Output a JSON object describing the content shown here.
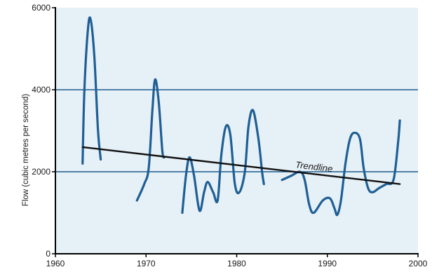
{
  "chart_data": {
    "type": "line",
    "title": "",
    "xlabel": "",
    "ylabel": "Flow (cubic metres per second)",
    "xlim": [
      1960,
      2000
    ],
    "ylim": [
      0,
      6000
    ],
    "x_ticks": [
      1960,
      1970,
      1980,
      1990,
      2000
    ],
    "y_ticks": [
      0,
      2000,
      4000,
      6000
    ],
    "grid": {
      "horizontal_lines_at": [
        2000,
        4000
      ]
    },
    "legend": "none",
    "colors": {
      "plot_background": "#e6f0f7",
      "series": "#1f5f95",
      "grid": "#1f5c8c",
      "trendline": "#111111"
    },
    "series": [
      {
        "segments": [
          [
            [
              1963.0,
              2200
            ],
            [
              1963.2,
              4000
            ],
            [
              1963.6,
              5500
            ],
            [
              1963.9,
              5700
            ],
            [
              1964.3,
              4800
            ],
            [
              1964.7,
              3000
            ],
            [
              1965.0,
              2300
            ]
          ],
          [
            [
              1969.0,
              1300
            ],
            [
              1969.8,
              1700
            ],
            [
              1970.3,
              2100
            ],
            [
              1970.7,
              3500
            ],
            [
              1971.0,
              4250
            ],
            [
              1971.4,
              3700
            ],
            [
              1971.8,
              2500
            ],
            [
              1972.0,
              2350
            ]
          ],
          [
            [
              1974.0,
              1000
            ],
            [
              1974.4,
              1900
            ],
            [
              1974.8,
              2350
            ],
            [
              1975.3,
              1900
            ],
            [
              1975.9,
              1050
            ],
            [
              1976.4,
              1500
            ],
            [
              1976.8,
              1750
            ],
            [
              1977.4,
              1500
            ],
            [
              1977.9,
              1300
            ],
            [
              1978.3,
              2400
            ],
            [
              1978.8,
              3100
            ],
            [
              1979.3,
              2900
            ],
            [
              1979.8,
              1700
            ],
            [
              1980.3,
              1500
            ],
            [
              1980.9,
              2000
            ],
            [
              1981.3,
              3100
            ],
            [
              1981.8,
              3500
            ],
            [
              1982.4,
              2800
            ],
            [
              1982.8,
              2000
            ],
            [
              1983.0,
              1700
            ]
          ],
          [
            [
              1985.0,
              1800
            ],
            [
              1986.0,
              1900
            ],
            [
              1987.0,
              2000
            ],
            [
              1987.5,
              1800
            ],
            [
              1988.0,
              1200
            ],
            [
              1988.5,
              1000
            ],
            [
              1989.5,
              1300
            ],
            [
              1990.3,
              1350
            ],
            [
              1990.8,
              1100
            ],
            [
              1991.1,
              950
            ],
            [
              1991.5,
              1300
            ],
            [
              1992.0,
              2200
            ],
            [
              1992.5,
              2800
            ],
            [
              1993.0,
              2950
            ],
            [
              1993.6,
              2800
            ],
            [
              1994.0,
              2100
            ],
            [
              1994.5,
              1600
            ],
            [
              1995.0,
              1500
            ],
            [
              1995.7,
              1600
            ],
            [
              1996.5,
              1700
            ],
            [
              1997.3,
              1800
            ],
            [
              1997.8,
              2700
            ],
            [
              1998.0,
              3250
            ]
          ]
        ]
      }
    ],
    "trendline": {
      "from": [
        1963,
        2600
      ],
      "to": [
        1998,
        1700
      ],
      "label": "Trendline"
    }
  }
}
